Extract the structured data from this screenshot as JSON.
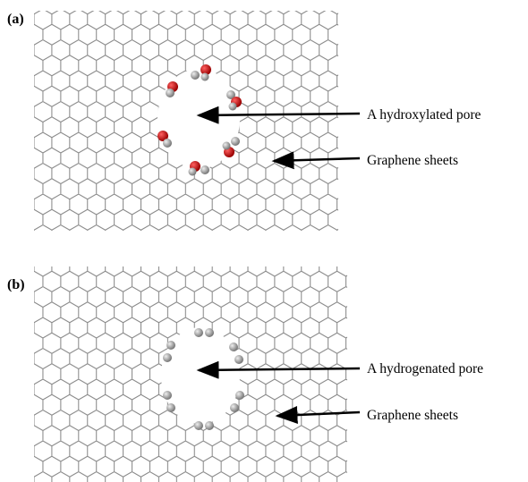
{
  "panels": [
    {
      "label": "(a)",
      "pore_annotation": "A hydroxylated pore",
      "sheet_annotation": "Graphene sheets"
    },
    {
      "label": "(b)",
      "pore_annotation": "A hydrogenated pore",
      "sheet_annotation": "Graphene sheets"
    }
  ]
}
